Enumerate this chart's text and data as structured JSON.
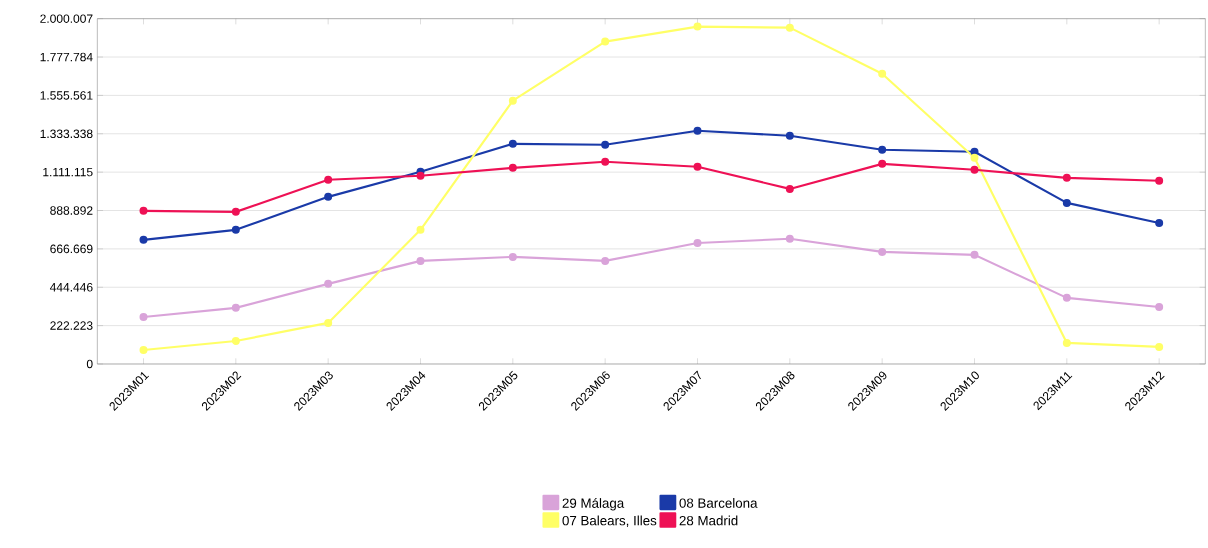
{
  "chart_data": {
    "type": "line",
    "categories": [
      "2023M01",
      "2023M02",
      "2023M03",
      "2023M04",
      "2023M05",
      "2023M06",
      "2023M07",
      "2023M08",
      "2023M09",
      "2023M10",
      "2023M11",
      "2023M12"
    ],
    "series": [
      {
        "name": "29 Málaga",
        "color": "#d9a3d9",
        "values": [
          272000,
          325000,
          464000,
          597000,
          620000,
          597000,
          701000,
          725000,
          649000,
          632000,
          383000,
          330000
        ]
      },
      {
        "name": "08 Barcelona",
        "color": "#1a3aa8",
        "values": [
          719000,
          777000,
          968000,
          1113000,
          1275000,
          1270000,
          1351000,
          1322000,
          1241000,
          1229000,
          933000,
          817000
        ]
      },
      {
        "name": "07 Balears, Illes",
        "color": "#ffff66",
        "values": [
          81000,
          133000,
          238000,
          777000,
          1525000,
          1867000,
          1954000,
          1948000,
          1681000,
          1194000,
          122000,
          99000
        ]
      },
      {
        "name": "28 Madrid",
        "color": "#ee1155",
        "values": [
          887000,
          881000,
          1067000,
          1090000,
          1136000,
          1171000,
          1142000,
          1014000,
          1159000,
          1125000,
          1078000,
          1061000
        ]
      }
    ],
    "ylim": [
      0,
      2000007
    ],
    "yticks": [
      0,
      {
        "value": 222223,
        "label": "222.223"
      },
      {
        "value": 444446,
        "label": "444.446"
      },
      {
        "value": 666669,
        "label": "666.669"
      },
      {
        "value": 888892,
        "label": "888.892"
      },
      {
        "value": 1111115,
        "label": "1.111.115"
      },
      {
        "value": 1333338,
        "label": "1.333.338"
      },
      {
        "value": 1555561,
        "label": "1.555.561"
      },
      {
        "value": 1777784,
        "label": "1.777.784"
      },
      {
        "value": 2000007,
        "label": "2.000.007"
      }
    ],
    "grid": "y",
    "legend": "bottom",
    "marker": "circle",
    "line_style": "solid"
  }
}
